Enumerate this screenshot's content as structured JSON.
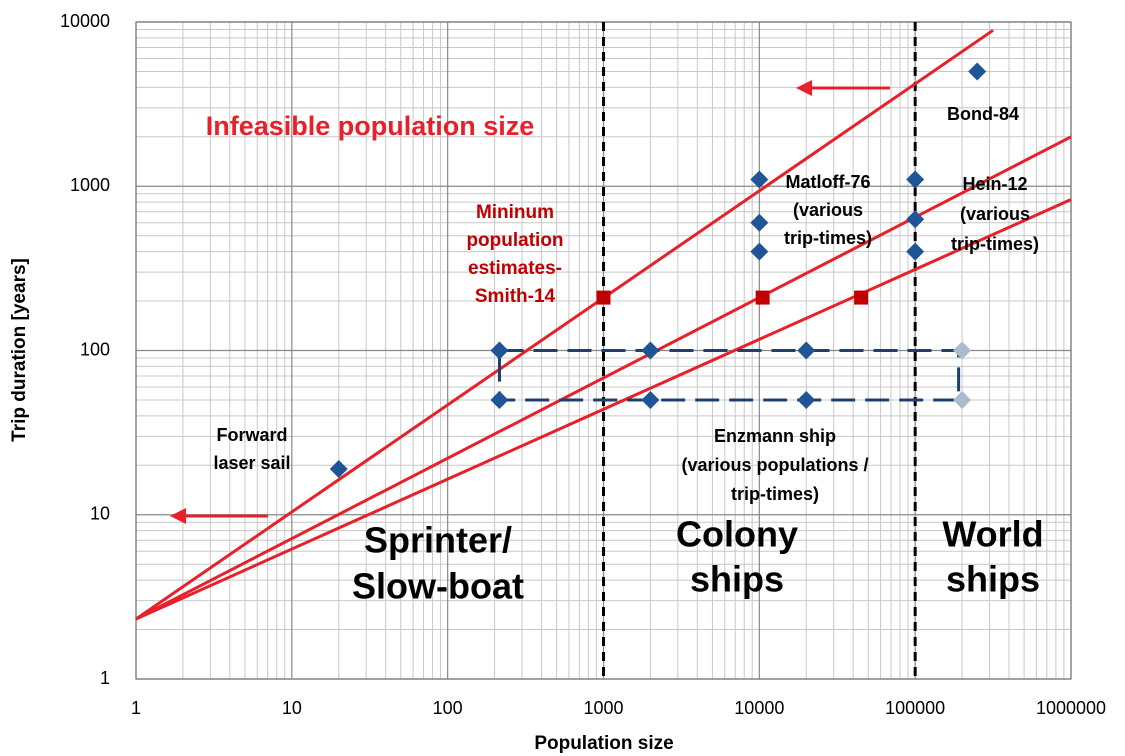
{
  "chart_data": {
    "type": "scatter",
    "xlabel": "Population size",
    "ylabel": "Trip duration [years]",
    "log_x": true,
    "log_y": true,
    "grid": true,
    "xlim": [
      1,
      1000000
    ],
    "ylim": [
      1,
      10000
    ],
    "xticks": [
      1,
      10,
      100,
      1000,
      10000,
      100000,
      1000000
    ],
    "yticks": [
      1,
      10,
      100,
      1000,
      10000
    ],
    "vlines": [
      1000,
      100000
    ],
    "series": [
      {
        "style": "line",
        "color": "#e8202a",
        "x": [
          1,
          316000
        ],
        "values": [
          2.32,
          8900
        ]
      },
      {
        "style": "line",
        "color": "#e8202a",
        "x": [
          1,
          1000000
        ],
        "values": [
          2.32,
          2000
        ]
      },
      {
        "style": "line",
        "color": "#e8202a",
        "x": [
          1,
          1000000
        ],
        "values": [
          2.32,
          830
        ]
      },
      {
        "style": "dashed",
        "color": "#1f3f6e",
        "x": [
          215,
          190000,
          190000,
          215,
          215
        ],
        "values": [
          100,
          100,
          50,
          50,
          100
        ]
      },
      {
        "style": "square",
        "color": "#c00000",
        "x": [
          1000,
          10500,
          45000
        ],
        "values": [
          210,
          210,
          210
        ]
      },
      {
        "style": "diamond",
        "color": "#1f5597",
        "x": [
          20,
          10000,
          10000,
          10000,
          100000,
          100000,
          100000,
          250000,
          215,
          2000,
          20000,
          215,
          2000,
          20000
        ],
        "values": [
          19,
          1100,
          600,
          400,
          1100,
          630,
          400,
          5000,
          100,
          100,
          100,
          50,
          50,
          50
        ]
      },
      {
        "style": "diamond",
        "color": "#a9bccf",
        "x": [
          200000,
          200000
        ],
        "values": [
          100,
          50
        ]
      }
    ],
    "annotations": [
      {
        "lines": [
          "Infeasible population size"
        ]
      },
      {
        "lines": [
          "Mininum",
          "population",
          "estimates-",
          "Smith-14"
        ]
      },
      {
        "lines": [
          "Forward",
          "laser sail"
        ]
      },
      {
        "lines": [
          "Matloff-76",
          "(various",
          "trip-times)"
        ]
      },
      {
        "lines": [
          "Hein-12",
          "(various",
          "trip-times)"
        ]
      },
      {
        "lines": [
          "Bond-84"
        ]
      },
      {
        "lines": [
          "Enzmann ship",
          "(various populations /",
          "trip-times)"
        ]
      },
      {
        "lines": [
          "Sprinter/",
          "Slow-boat"
        ]
      },
      {
        "lines": [
          "Colony",
          "ships"
        ]
      },
      {
        "lines": [
          "World",
          "ships"
        ]
      }
    ]
  }
}
